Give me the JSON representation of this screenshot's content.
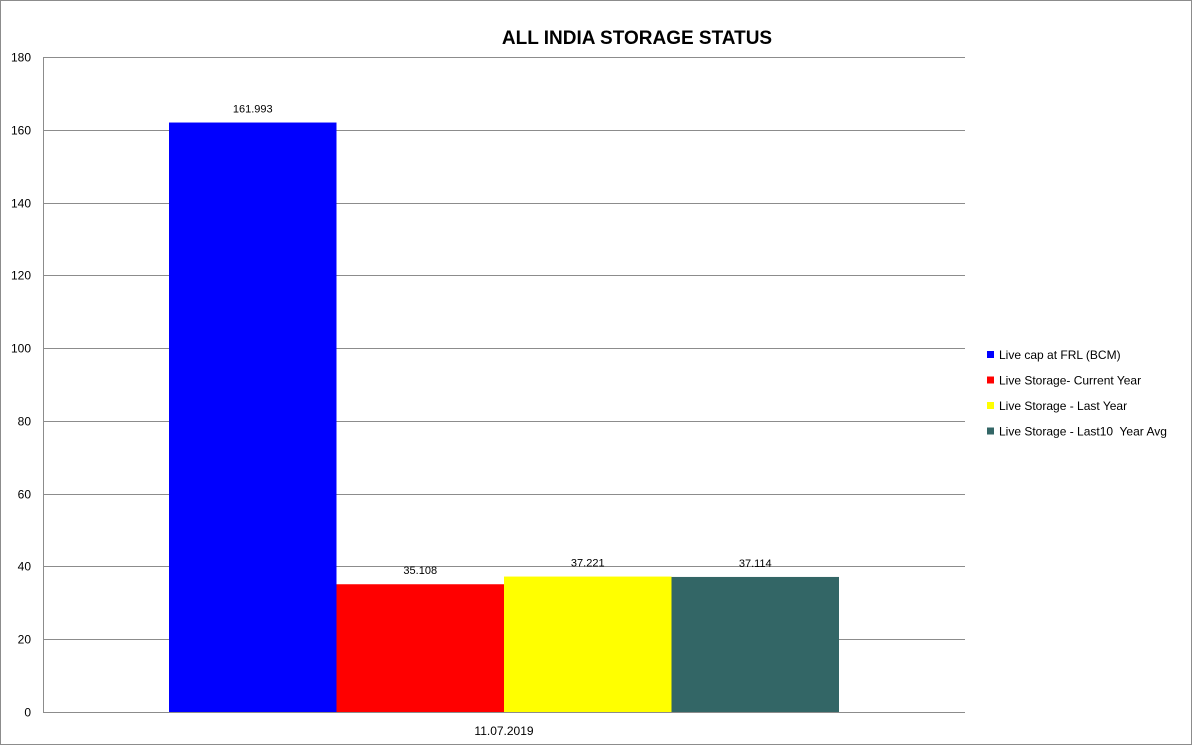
{
  "chart_data": {
    "type": "bar",
    "title": "ALL INDIA STORAGE STATUS",
    "categories": [
      "11.07.2019"
    ],
    "series": [
      {
        "name": "Live cap at FRL (BCM)",
        "values": [
          161.993
        ],
        "color": "#0000FF",
        "label": "161.993"
      },
      {
        "name": "Live Storage- Current Year",
        "values": [
          35.108
        ],
        "color": "#FF0000",
        "label": "35.108"
      },
      {
        "name": "Live Storage - Last Year",
        "values": [
          37.221
        ],
        "color": "#FFFF00",
        "label": "37.221"
      },
      {
        "name": "Live Storage - Last10  Year Avg",
        "values": [
          37.114
        ],
        "color": "#336666",
        "label": "37.114"
      }
    ],
    "xlabel": "",
    "ylabel": "",
    "ylim": [
      0,
      180
    ],
    "yticks": [
      0,
      20,
      40,
      60,
      80,
      100,
      120,
      140,
      160,
      180
    ],
    "grid": true,
    "legend": "right"
  }
}
